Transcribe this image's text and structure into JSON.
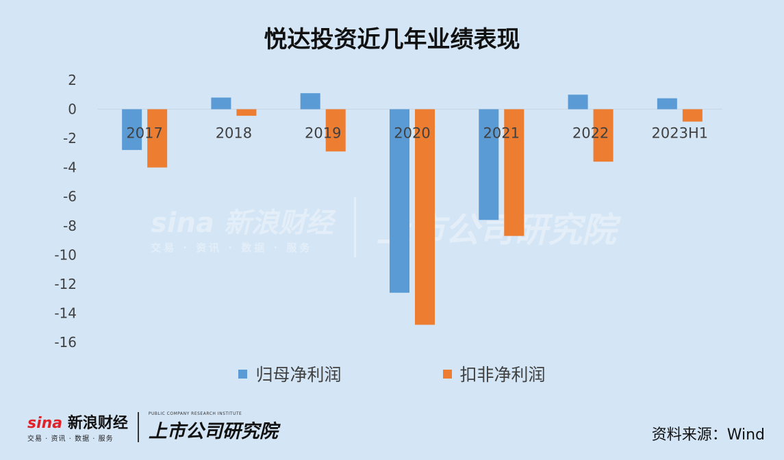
{
  "title": "悦达投资近几年业绩表现",
  "watermark": {
    "sina": "sina 新浪财经",
    "sina_sub": "交易 · 资讯 · 数据 · 服务",
    "institute": "上市公司研究院"
  },
  "footer": {
    "sina_logo": "sina",
    "sina_name": "新浪财经",
    "sina_tagline": "交易 · 资讯 · 数据 · 服务",
    "institute_en": "PUBLIC COMPANY RESEARCH INSTITUTE",
    "institute_cn": "上市公司研究院",
    "source": "资料来源：Wind"
  },
  "chart_data": {
    "type": "bar",
    "title": "悦达投资近几年业绩表现",
    "categories": [
      "2017",
      "2018",
      "2019",
      "2020",
      "2021",
      "2022",
      "2023H1"
    ],
    "series": [
      {
        "name": "归母净利润",
        "color": "#5b9bd5",
        "values": [
          -2.8,
          0.8,
          1.1,
          -12.6,
          -7.6,
          1.0,
          0.75
        ]
      },
      {
        "name": "扣非净利润",
        "color": "#ed7d31",
        "values": [
          -4.0,
          -0.45,
          -2.9,
          -14.8,
          -8.7,
          -3.6,
          -0.85
        ]
      }
    ],
    "yticks": [
      2,
      0,
      -2,
      -4,
      -6,
      -8,
      -10,
      -12,
      -14,
      -16
    ],
    "ylim": [
      -16,
      2
    ],
    "grid": false,
    "legend_position": "bottom"
  }
}
